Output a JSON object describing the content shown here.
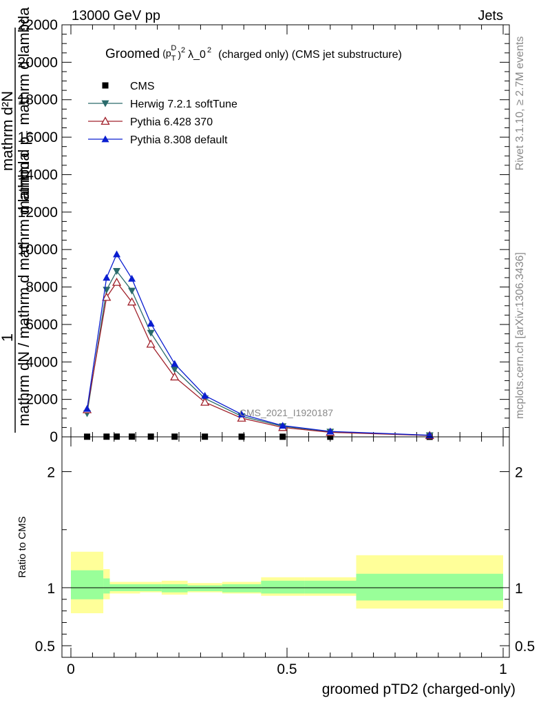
{
  "header": {
    "left": "13000 GeV pp",
    "right": "Jets"
  },
  "side": {
    "rivet": "Rivet 3.1.10, ≥ 2.7M events",
    "mcplots": "mcplots.cern.ch [arXiv:1306.3436]"
  },
  "watermark": "CMS_2021_I1920187",
  "chart_data": [
    {
      "type": "line",
      "title": {
        "groomed": "Groomed",
        "pt": "(p",
        "pt_sub": "T",
        "pt_sup": "D",
        "close": ")",
        "square": "2",
        "lambda": "λ_0",
        "lambda_sup": "2",
        "rest": "(charged only) (CMS jet substructure)"
      },
      "ylabel": {
        "one": "1",
        "bar_line": "mathrm dN / mathrm d mathrm d lambda",
        "numerator": "mathrm d²N",
        "denominator": "mathrm d p",
        "denominator_sub": "T",
        "denominator_rest": "mathrm d lambda"
      },
      "xlim": [
        0,
        1
      ],
      "ylim": [
        0,
        22000
      ],
      "yticks": [
        "2000",
        "4000",
        "6000",
        "8000",
        "10000",
        "12000",
        "14000",
        "16000",
        "18000",
        "20000",
        "22000"
      ],
      "legend_position": "top-left",
      "x": [
        0.0375,
        0.0825,
        0.106,
        0.141,
        0.185,
        0.24,
        0.31,
        0.395,
        0.49,
        0.6,
        0.83
      ],
      "series": [
        {
          "name": "CMS",
          "color": "#000000",
          "marker": "square",
          "values": [
            8,
            10,
            12,
            12,
            11,
            10,
            9,
            8,
            6,
            4,
            1
          ]
        },
        {
          "name": "Herwig 7.2.1 softTune",
          "color": "#2a6b6b",
          "marker": "triangle-down",
          "values": [
            1250,
            7850,
            8850,
            7800,
            5550,
            3600,
            2050,
            1100,
            560,
            270,
            75
          ]
        },
        {
          "name": "Pythia 6.428 370",
          "color": "#a0202a",
          "marker": "triangle-open",
          "values": [
            1450,
            7450,
            8250,
            7200,
            4950,
            3200,
            1850,
            1000,
            500,
            240,
            70
          ]
        },
        {
          "name": "Pythia 8.308 default",
          "color": "#0a1ed0",
          "marker": "triangle-up",
          "values": [
            1500,
            8500,
            9750,
            8450,
            6050,
            3900,
            2200,
            1200,
            600,
            290,
            85
          ]
        }
      ]
    },
    {
      "type": "area",
      "ylabel": "Ratio to CMS",
      "xlabel": "groomed pTD2 (charged-only)",
      "xlim": [
        0,
        1
      ],
      "ylim": [
        0.4,
        2.3
      ],
      "yticks": [
        "0.5",
        "1",
        "2"
      ],
      "xticks": [
        "0",
        "0.5",
        "1"
      ],
      "reference_line": 1,
      "bins": [
        0,
        0.075,
        0.09,
        0.125,
        0.16,
        0.21,
        0.27,
        0.35,
        0.44,
        0.54,
        0.66,
        1.0
      ],
      "stat_band": {
        "color": "#99ff99",
        "lo": [
          0.9,
          0.95,
          0.97,
          0.97,
          0.97,
          0.96,
          0.97,
          0.96,
          0.95,
          0.95,
          0.89
        ],
        "hi": [
          1.15,
          1.08,
          1.03,
          1.03,
          1.03,
          1.03,
          1.02,
          1.03,
          1.06,
          1.06,
          1.12
        ]
      },
      "syst_band": {
        "color": "#ffff99",
        "lo": [
          0.78,
          0.9,
          0.95,
          0.95,
          0.96,
          0.94,
          0.96,
          0.95,
          0.93,
          0.93,
          0.82
        ],
        "hi": [
          1.31,
          1.16,
          1.05,
          1.05,
          1.05,
          1.06,
          1.04,
          1.05,
          1.09,
          1.09,
          1.28
        ]
      }
    }
  ]
}
